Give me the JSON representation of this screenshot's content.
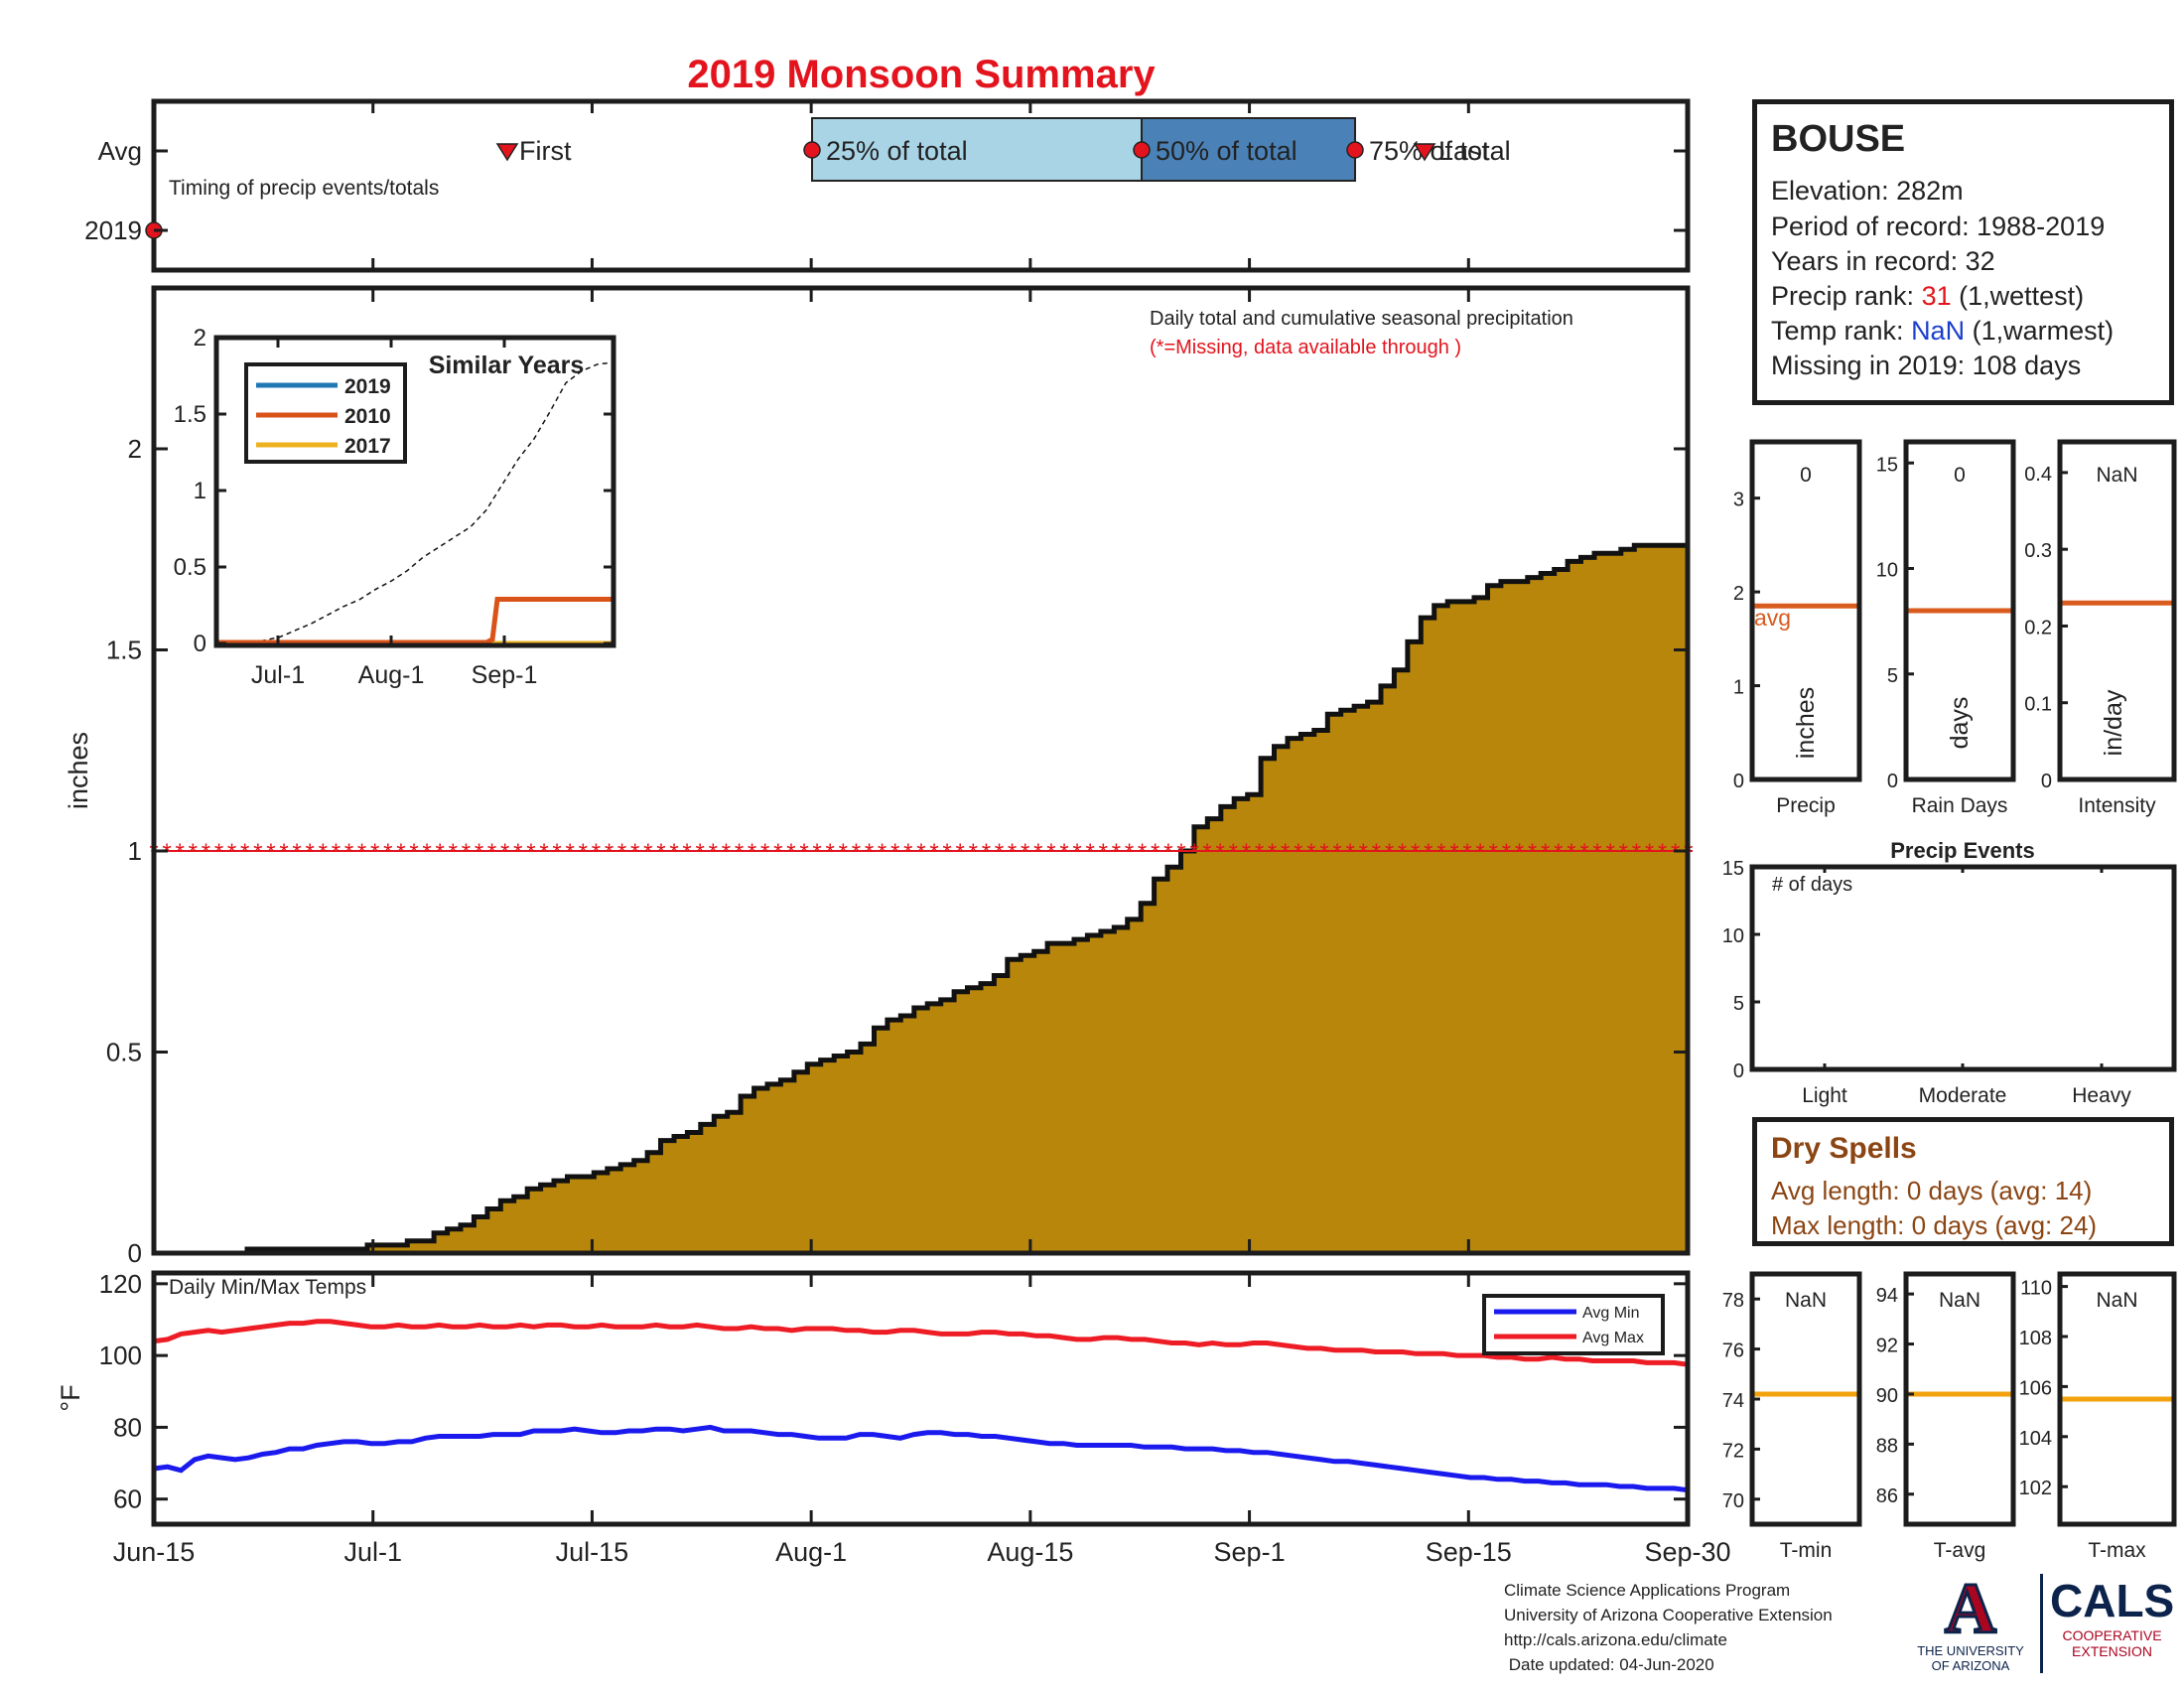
{
  "title": "2019 Monsoon Summary",
  "colors": {
    "title_red": "#e3141d",
    "bar_fill": "#b8860b",
    "light_blue": "#a8d4e6",
    "dark_blue": "#4a82b8",
    "max_temp": "#ee1c24",
    "min_temp": "#1a1aee",
    "avg_line": "#d95b1e",
    "temp_avg_line": "#f2a20c",
    "dry_brown": "#8b4513",
    "rank_red": "#e3141d",
    "rank_blue": "#1a3fcc",
    "series_2019": "#1f77b4",
    "series_2010": "#d95319",
    "series_2017": "#edb120"
  },
  "timing": {
    "row_labels": [
      "Avg",
      "2019"
    ],
    "note": "Timing of precip events/totals",
    "first_label": "First",
    "p25_label": "25% of total",
    "p50_label": "50% of total",
    "p75_label": "75% of total",
    "last_label": "Last"
  },
  "precip": {
    "note_line1": "Daily total and cumulative seasonal precipitation",
    "note_line2": "(*=Missing, data available through )",
    "ylabel": "inches",
    "y_ticks": [
      "0",
      "0.5",
      "1",
      "1.5",
      "2"
    ]
  },
  "similar": {
    "title": "Similar Years",
    "y_ticks": [
      "0",
      "0.5",
      "1",
      "1.5",
      "2"
    ],
    "x_ticks": [
      "Jul-1",
      "Aug-1",
      "Sep-1"
    ],
    "legend": [
      "2019",
      "2010",
      "2017"
    ]
  },
  "temps": {
    "title": "Daily Min/Max Temps",
    "ylabel": "°F",
    "y_ticks": [
      "60",
      "80",
      "100",
      "120"
    ],
    "legend_min": "Avg Min",
    "legend_max": "Avg Max"
  },
  "x_axis": {
    "ticks": [
      "Jun-15",
      "Jul-1",
      "Jul-15",
      "Aug-1",
      "Aug-15",
      "Sep-1",
      "Sep-15",
      "Sep-30"
    ]
  },
  "station": {
    "name": "BOUSE",
    "elevation": "Elevation: 282m",
    "period": "Period of record: 1988-2019",
    "years": "Years in record: 32",
    "precip_rank_prefix": "Precip rank: ",
    "precip_rank_value": "31",
    "precip_rank_suffix": " (1,wettest)",
    "temp_rank_prefix": "Temp rank: ",
    "temp_rank_value": "NaN",
    "temp_rank_suffix": " (1,warmest)",
    "missing": "Missing in 2019: 108 days"
  },
  "mini": {
    "precip": {
      "value": "0",
      "unit": "inches",
      "label": "Precip",
      "avg_label": "avg",
      "ticks": [
        "0",
        "1",
        "2",
        "3"
      ]
    },
    "rain_days": {
      "value": "0",
      "unit": "days",
      "label": "Rain Days",
      "ticks": [
        "0",
        "5",
        "10",
        "15"
      ]
    },
    "intensity": {
      "value": "NaN",
      "unit": "in/day",
      "label": "Intensity",
      "ticks": [
        "0",
        "0.1",
        "0.2",
        "0.3",
        "0.4"
      ]
    }
  },
  "events": {
    "title": "Precip Events",
    "note": "# of days",
    "ticks": [
      "0",
      "5",
      "10",
      "15"
    ],
    "categories": [
      "Light",
      "Moderate",
      "Heavy"
    ]
  },
  "dry_spells": {
    "title": "Dry Spells",
    "avg": "Avg length: 0 days (avg: 14)",
    "max": "Max length: 0 days (avg: 24)"
  },
  "temp_mini": {
    "tmin": {
      "value": "NaN",
      "label": "T-min",
      "ticks": [
        "70",
        "72",
        "74",
        "76",
        "78"
      ]
    },
    "tavg": {
      "value": "NaN",
      "label": "T-avg",
      "ticks": [
        "86",
        "88",
        "90",
        "92",
        "94"
      ]
    },
    "tmax": {
      "value": "NaN",
      "label": "T-max",
      "ticks": [
        "102",
        "104",
        "106",
        "108",
        "110"
      ]
    }
  },
  "footer": {
    "line1": "Climate Science Applications Program",
    "line2": "University of Arizona Cooperative Extension",
    "line3": "http://cals.arizona.edu/climate",
    "line4": " Date updated: 04-Jun-2020"
  },
  "logos": {
    "ua_letter": "A",
    "ua_line1": "THE UNIVERSITY",
    "ua_line2": "OF ARIZONA",
    "cals": "CALS",
    "cals_line1": "COOPERATIVE",
    "cals_line2": "EXTENSION"
  },
  "chart_data": [
    {
      "type": "area",
      "title": "Daily total and cumulative seasonal precipitation",
      "ylabel": "inches",
      "ylim": [
        0,
        2.4
      ],
      "x_ticks": [
        "Jun-15",
        "Jul-1",
        "Jul-15",
        "Aug-1",
        "Aug-15",
        "Sep-1",
        "Sep-15",
        "Sep-30"
      ],
      "series": [
        {
          "values": [
            0,
            0,
            0,
            0,
            0,
            0,
            0,
            0.01,
            0.01,
            0.01,
            0.01,
            0.01,
            0.01,
            0.01,
            0.01,
            0.01,
            0.02,
            0.02,
            0.02,
            0.03,
            0.03,
            0.05,
            0.06,
            0.07,
            0.09,
            0.11,
            0.13,
            0.14,
            0.16,
            0.17,
            0.18,
            0.19,
            0.19,
            0.2,
            0.21,
            0.22,
            0.23,
            0.25,
            0.28,
            0.29,
            0.3,
            0.32,
            0.34,
            0.35,
            0.39,
            0.41,
            0.42,
            0.43,
            0.45,
            0.47,
            0.48,
            0.49,
            0.5,
            0.52,
            0.56,
            0.58,
            0.59,
            0.61,
            0.62,
            0.63,
            0.65,
            0.66,
            0.67,
            0.69,
            0.73,
            0.74,
            0.75,
            0.77,
            0.77,
            0.78,
            0.79,
            0.8,
            0.81,
            0.83,
            0.87,
            0.93,
            0.96,
            1.0,
            1.06,
            1.08,
            1.11,
            1.13,
            1.14,
            1.23,
            1.26,
            1.28,
            1.29,
            1.3,
            1.34,
            1.35,
            1.36,
            1.37,
            1.41,
            1.45,
            1.52,
            1.58,
            1.61,
            1.62,
            1.62,
            1.63,
            1.66,
            1.67,
            1.67,
            1.68,
            1.69,
            1.7,
            1.72,
            1.73,
            1.74,
            1.74,
            1.75,
            1.76,
            1.76,
            1.76,
            1.76
          ]
        }
      ],
      "reference_line": 1.0
    },
    {
      "type": "line",
      "title": "Similar Years",
      "ylim": [
        0,
        2
      ],
      "x_ticks": [
        "Jul-1",
        "Aug-1",
        "Sep-1"
      ],
      "series": [
        {
          "name": "2019",
          "values": [
            0,
            0,
            0
          ]
        },
        {
          "name": "2010",
          "values": [
            0,
            0,
            0.3
          ]
        },
        {
          "name": "2017",
          "values": [
            0,
            0,
            0
          ]
        }
      ]
    },
    {
      "type": "line",
      "title": "Daily Min/Max Temps",
      "ylabel": "°F",
      "ylim": [
        53,
        123
      ],
      "y_ticks": [
        60,
        80,
        100,
        120
      ],
      "series": [
        {
          "name": "Avg Max",
          "values": [
            104,
            104.5,
            106,
            106.5,
            107,
            106.5,
            107,
            107.5,
            108,
            108.5,
            109,
            109,
            109.5,
            109.5,
            109,
            108.5,
            108,
            108,
            108.5,
            108,
            108,
            108.5,
            108,
            108,
            108.5,
            108,
            108,
            108.5,
            108,
            108.5,
            108.5,
            108,
            108,
            108.5,
            108,
            108,
            108,
            108.5,
            108,
            108,
            108.5,
            108,
            107.5,
            107.5,
            108,
            107.5,
            107.5,
            107,
            107.5,
            107.5,
            107.5,
            107,
            107,
            106.5,
            106.5,
            107,
            107,
            106.5,
            106,
            106,
            106,
            106.5,
            106.5,
            106,
            106,
            105.5,
            105.5,
            105,
            104.5,
            104.5,
            105,
            105,
            104.5,
            104.5,
            104,
            103.5,
            103.5,
            103,
            103.5,
            103,
            103,
            103.5,
            103.5,
            103,
            102.5,
            102,
            102,
            101.5,
            101.5,
            101.5,
            101,
            101,
            101,
            100.5,
            100.5,
            100.5,
            100,
            100,
            100,
            99.5,
            99.5,
            99,
            99,
            99.5,
            99,
            99,
            98.5,
            98.5,
            98.5,
            98.5,
            98,
            98,
            98,
            97.5
          ]
        },
        {
          "name": "Avg Min",
          "values": [
            68.5,
            69,
            68,
            71,
            72,
            71.5,
            71,
            71.5,
            72.5,
            73,
            74,
            74,
            75,
            75.5,
            76,
            76,
            75.5,
            75.5,
            76,
            76,
            77,
            77.5,
            77.5,
            77.5,
            77.5,
            78,
            78,
            78,
            79,
            79,
            79,
            79.5,
            79,
            78.5,
            78.5,
            79,
            79,
            79.5,
            79.5,
            79,
            79.5,
            80,
            79,
            79,
            79,
            78.5,
            78,
            78,
            77.5,
            77,
            77,
            77,
            78,
            78,
            77.5,
            77,
            78,
            78.5,
            78.5,
            78,
            78,
            77.5,
            77.5,
            77,
            76.5,
            76,
            75.5,
            75.5,
            75,
            75,
            75,
            75,
            75,
            74.5,
            74.5,
            74.5,
            74,
            74,
            74,
            73.5,
            73.5,
            73,
            73,
            72.5,
            72,
            71.5,
            71,
            70.5,
            70.5,
            70,
            69.5,
            69,
            68.5,
            68,
            67.5,
            67,
            66.5,
            66,
            66,
            65.5,
            65.5,
            65,
            65,
            64.5,
            64.5,
            64,
            64,
            64,
            63.5,
            63.5,
            63,
            63,
            63,
            62.5
          ]
        }
      ]
    },
    {
      "type": "table",
      "title": "Precip Events",
      "categories": [
        "Light",
        "Moderate",
        "Heavy"
      ],
      "values": [
        0,
        0,
        0
      ],
      "ylim": [
        0,
        15
      ]
    }
  ]
}
